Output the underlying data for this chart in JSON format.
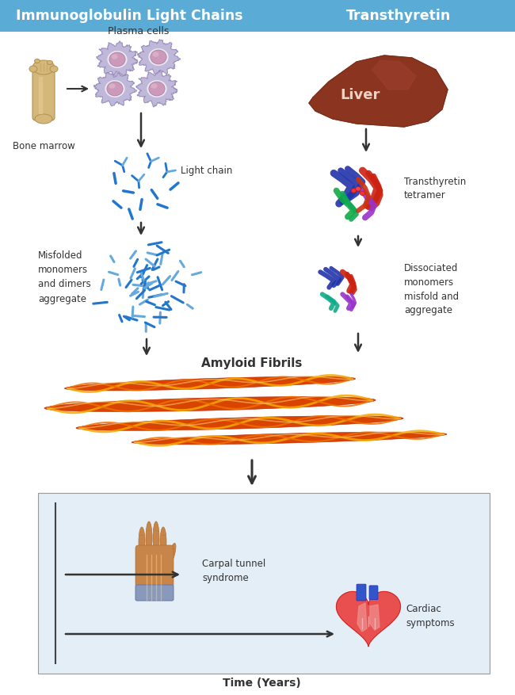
{
  "header_color": "#5aabd5",
  "header_text_color": "#ffffff",
  "header_left": "Immunoglobulin Light Chains",
  "header_right": "Transthyretin",
  "bg_color": "#ffffff",
  "arrow_color": "#333333",
  "label_plasma": "Plasma cells",
  "label_bone": "Bone marrow",
  "label_liver": "Liver",
  "label_light_chain": "Light chain",
  "label_ttr_tetramer": "Transthyretin\ntetramer",
  "label_dissociated": "Dissociated\nmonomers\nmisfold and\naggregate",
  "label_misfolded": "Misfolded\nmonomers\nand dimers\naggregate",
  "label_fibrils": "Amyloid Fibrils",
  "label_carpal": "Carpal tunnel\nsyndrome",
  "label_cardiac": "Cardiac\nsymptoms",
  "label_time": "Time (Years)",
  "lc_color_dark": "#2277cc",
  "lc_color_light": "#66aadd",
  "timeline_bg": "#e4eef7",
  "timeline_border": "#999999",
  "bone_color": "#d4b87a",
  "bone_dark": "#b09050",
  "liver_color": "#8b3520",
  "liver_mid": "#7a2e1a",
  "liver_light": "#a04030"
}
